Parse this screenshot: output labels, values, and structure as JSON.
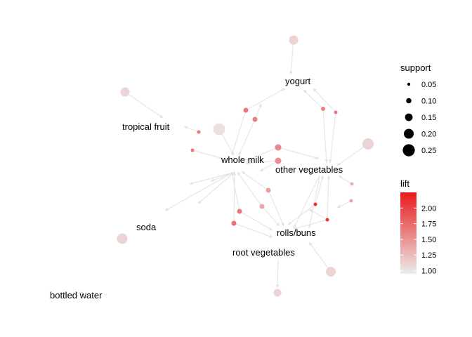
{
  "graph": {
    "items": [
      {
        "id": "yogurt",
        "label": "yogurt"
      },
      {
        "id": "tropical_fruit",
        "label": "tropical fruit"
      },
      {
        "id": "whole_milk",
        "label": "whole milk"
      },
      {
        "id": "other_vegetables",
        "label": "other vegetables"
      },
      {
        "id": "soda",
        "label": "soda"
      },
      {
        "id": "rolls_buns",
        "label": "rolls/buns"
      },
      {
        "id": "root_vegetables",
        "label": "root vegetables"
      },
      {
        "id": "bottled_water",
        "label": "bottled water"
      }
    ]
  },
  "legend": {
    "support": {
      "title": "support",
      "ticks": [
        {
          "label": "0.05",
          "value": 0.05
        },
        {
          "label": "0.10",
          "value": 0.1
        },
        {
          "label": "0.15",
          "value": 0.15
        },
        {
          "label": "0.20",
          "value": 0.2
        },
        {
          "label": "0.25",
          "value": 0.25
        }
      ]
    },
    "lift": {
      "title": "lift",
      "ticks": [
        {
          "label": "2.00",
          "value": 2.0
        },
        {
          "label": "1.75",
          "value": 1.75
        },
        {
          "label": "1.50",
          "value": 1.5
        },
        {
          "label": "1.25",
          "value": 1.25
        },
        {
          "label": "1.00",
          "value": 1.0
        }
      ],
      "range": [
        0.95,
        2.25
      ],
      "color_low": "#ececec",
      "color_high": "#e8191b"
    }
  },
  "colors": {
    "edge": "#e6e6e6",
    "arrow": "#e0e0e0"
  }
}
